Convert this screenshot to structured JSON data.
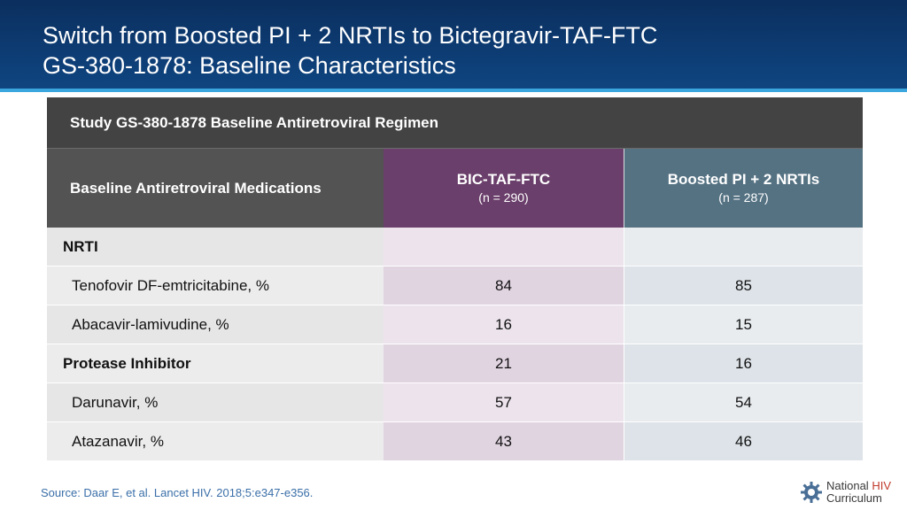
{
  "title": {
    "line1": "Switch from Boosted PI + 2 NRTIs to Bictegravir-TAF-FTC",
    "line2": "GS-380-1878: Baseline Characteristics"
  },
  "table": {
    "caption": "Study GS-380-1878 Baseline Antiretroviral Regimen",
    "header": {
      "col0": "Baseline Antiretroviral Medications",
      "arm1": {
        "name": "BIC-TAF-FTC",
        "n": "(n = 290)"
      },
      "arm2": {
        "name": "Boosted PI + 2 NRTIs",
        "n": "(n = 287)"
      }
    },
    "rows": [
      {
        "label": "NRTI",
        "v1": "",
        "v2": ""
      },
      {
        "label": "Tenofovir DF-emtricitabine, %",
        "v1": "84",
        "v2": "85"
      },
      {
        "label": "Abacavir-lamivudine, %",
        "v1": "16",
        "v2": "15"
      },
      {
        "label": "Protease Inhibitor",
        "v1": "21",
        "v2": "16"
      },
      {
        "label": "Darunavir, %",
        "v1": "57",
        "v2": "54"
      },
      {
        "label": "Atazanavir, %",
        "v1": "43",
        "v2": "46"
      }
    ]
  },
  "source": "Source: Daar E, et al. Lancet HIV. 2018;5:e347-e356.",
  "logo": {
    "word1": "National",
    "word2": "HIV",
    "word3": "Curriculum",
    "icon": "gear-logo-icon"
  },
  "colors": {
    "header_bg": "#0d3b72",
    "header_rule": "#3aa6dd",
    "arm1": "#6b3f6b",
    "arm2": "#557283",
    "source_text": "#3a6fa8",
    "logo_accent": "#c0392b"
  }
}
